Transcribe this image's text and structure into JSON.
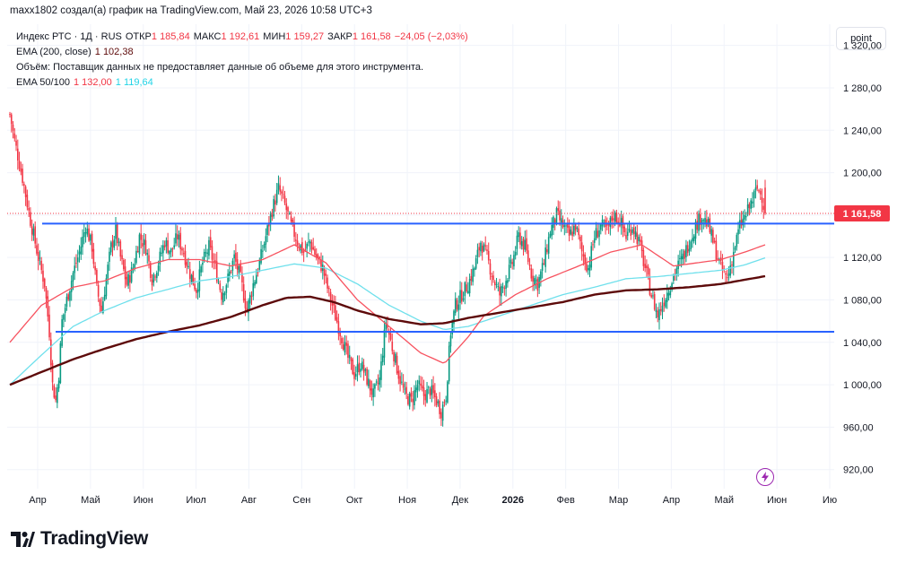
{
  "header": {
    "attribution": "maxx1802 создал(а) график на TradingView.com, Май 23, 2026 10:58 UTC+3"
  },
  "legend": {
    "symbol_line": "Индекс РТС · 1Д · RUS",
    "open_label": "ОТКР",
    "open_value": "1 185,84",
    "high_label": "МАКС",
    "high_value": "1 192,61",
    "low_label": "МИН",
    "low_value": "1 159,27",
    "close_label": "ЗАКР",
    "close_value": "1 161,58",
    "change": "−24,05 (−2,03%)",
    "ema200_label": "EMA (200, close)",
    "ema200_value": "1 102,38",
    "volume_note": "Объём: Поставщик данных не предоставляет данные об объеме для этого инструмента.",
    "ema_pair_label": "EMA 50/100",
    "ema50_value": "1 132,00",
    "ema100_value": "1 119,64"
  },
  "scale_button": "point",
  "price_badge": "1 161,58",
  "logo": {
    "text": "TradingView"
  },
  "colors": {
    "up": "#089981",
    "down": "#f23645",
    "ema50": "#f7525f",
    "ema100": "#6fe0ec",
    "ema200": "#5d0a0a",
    "level_line": "#2962ff",
    "badge_bg": "#f23645",
    "grid": "#f0f3fa"
  },
  "chart_data": {
    "type": "candlestick",
    "y_axis": {
      "ticks": [
        920,
        960,
        1000,
        1040,
        1080,
        1120,
        1160,
        1200,
        1240,
        1280,
        1320
      ],
      "tick_labels": [
        "920,00",
        "960,00",
        "1 000,00",
        "1 040,00",
        "1 080,00",
        "1 120,00",
        "1 160,00",
        "1 200,00",
        "1 240,00",
        "1 280,00",
        "1 320,00"
      ],
      "range": [
        902,
        1340
      ]
    },
    "x_axis": {
      "labels": [
        "Апр",
        "Май",
        "Июн",
        "Июл",
        "Авг",
        "Сен",
        "Окт",
        "Ноя",
        "Дек",
        "2026",
        "Фев",
        "Мар",
        "Апр",
        "Май",
        "Июн",
        "Ию"
      ],
      "bold_label_index": 9
    },
    "last_price": 1161.58,
    "last_price_line": true,
    "horizontal_levels": [
      1152,
      1050
    ],
    "price_path": [
      [
        0,
        1255
      ],
      [
        3,
        1230
      ],
      [
        8,
        1195
      ],
      [
        13,
        1155
      ],
      [
        18,
        1120
      ],
      [
        22,
        1095
      ],
      [
        25,
        1050
      ],
      [
        27,
        1000
      ],
      [
        29,
        985
      ],
      [
        31,
        1010
      ],
      [
        33,
        1060
      ],
      [
        36,
        1080
      ],
      [
        40,
        1105
      ],
      [
        44,
        1125
      ],
      [
        48,
        1150
      ],
      [
        52,
        1130
      ],
      [
        55,
        1090
      ],
      [
        58,
        1070
      ],
      [
        61,
        1100
      ],
      [
        64,
        1130
      ],
      [
        67,
        1145
      ],
      [
        70,
        1120
      ],
      [
        74,
        1095
      ],
      [
        78,
        1110
      ],
      [
        82,
        1140
      ],
      [
        86,
        1130
      ],
      [
        90,
        1100
      ],
      [
        94,
        1115
      ],
      [
        98,
        1135
      ],
      [
        102,
        1125
      ],
      [
        106,
        1140
      ],
      [
        110,
        1125
      ],
      [
        114,
        1105
      ],
      [
        118,
        1090
      ],
      [
        122,
        1115
      ],
      [
        126,
        1130
      ],
      [
        130,
        1110
      ],
      [
        134,
        1085
      ],
      [
        138,
        1100
      ],
      [
        142,
        1120
      ],
      [
        146,
        1100
      ],
      [
        150,
        1070
      ],
      [
        154,
        1095
      ],
      [
        158,
        1115
      ],
      [
        162,
        1140
      ],
      [
        166,
        1165
      ],
      [
        170,
        1185
      ],
      [
        174,
        1170
      ],
      [
        178,
        1150
      ],
      [
        182,
        1135
      ],
      [
        186,
        1125
      ],
      [
        190,
        1135
      ],
      [
        194,
        1120
      ],
      [
        198,
        1110
      ],
      [
        202,
        1085
      ],
      [
        206,
        1065
      ],
      [
        210,
        1045
      ],
      [
        214,
        1025
      ],
      [
        218,
        1010
      ],
      [
        222,
        1020
      ],
      [
        226,
        1005
      ],
      [
        230,
        990
      ],
      [
        234,
        1005
      ],
      [
        238,
        1060
      ],
      [
        242,
        1035
      ],
      [
        246,
        1010
      ],
      [
        250,
        990
      ],
      [
        254,
        985
      ],
      [
        258,
        1000
      ],
      [
        262,
        990
      ],
      [
        266,
        995
      ],
      [
        270,
        985
      ],
      [
        273,
        975
      ],
      [
        276,
        990
      ],
      [
        279,
        1050
      ],
      [
        282,
        1075
      ],
      [
        286,
        1085
      ],
      [
        290,
        1095
      ],
      [
        294,
        1110
      ],
      [
        298,
        1135
      ],
      [
        302,
        1120
      ],
      [
        306,
        1100
      ],
      [
        310,
        1085
      ],
      [
        314,
        1100
      ],
      [
        318,
        1115
      ],
      [
        322,
        1140
      ],
      [
        326,
        1130
      ],
      [
        330,
        1105
      ],
      [
        334,
        1095
      ],
      [
        338,
        1115
      ],
      [
        342,
        1145
      ],
      [
        346,
        1160
      ],
      [
        350,
        1150
      ],
      [
        354,
        1140
      ],
      [
        358,
        1150
      ],
      [
        362,
        1125
      ],
      [
        366,
        1110
      ],
      [
        370,
        1140
      ],
      [
        374,
        1150
      ],
      [
        378,
        1145
      ],
      [
        382,
        1160
      ],
      [
        386,
        1155
      ],
      [
        390,
        1140
      ],
      [
        394,
        1150
      ],
      [
        398,
        1135
      ],
      [
        402,
        1110
      ],
      [
        406,
        1085
      ],
      [
        410,
        1065
      ],
      [
        414,
        1080
      ],
      [
        418,
        1095
      ],
      [
        422,
        1110
      ],
      [
        426,
        1120
      ],
      [
        430,
        1135
      ],
      [
        434,
        1150
      ],
      [
        438,
        1160
      ],
      [
        442,
        1150
      ],
      [
        446,
        1130
      ],
      [
        450,
        1110
      ],
      [
        454,
        1100
      ],
      [
        458,
        1125
      ],
      [
        462,
        1150
      ],
      [
        466,
        1160
      ],
      [
        470,
        1175
      ],
      [
        473,
        1185
      ],
      [
        476,
        1178
      ],
      [
        478,
        1161.58
      ]
    ],
    "ema50": [
      [
        0,
        1040
      ],
      [
        20,
        1075
      ],
      [
        40,
        1092
      ],
      [
        60,
        1098
      ],
      [
        80,
        1110
      ],
      [
        100,
        1118
      ],
      [
        120,
        1118
      ],
      [
        140,
        1112
      ],
      [
        160,
        1118
      ],
      [
        180,
        1132
      ],
      [
        200,
        1115
      ],
      [
        220,
        1080
      ],
      [
        240,
        1055
      ],
      [
        260,
        1030
      ],
      [
        275,
        1020
      ],
      [
        290,
        1045
      ],
      [
        300,
        1065
      ],
      [
        320,
        1085
      ],
      [
        340,
        1100
      ],
      [
        360,
        1112
      ],
      [
        380,
        1125
      ],
      [
        400,
        1132
      ],
      [
        410,
        1122
      ],
      [
        420,
        1112
      ],
      [
        435,
        1115
      ],
      [
        450,
        1118
      ],
      [
        465,
        1125
      ],
      [
        478,
        1132
      ]
    ],
    "ema100": [
      [
        0,
        1000
      ],
      [
        20,
        1028
      ],
      [
        40,
        1055
      ],
      [
        60,
        1070
      ],
      [
        80,
        1082
      ],
      [
        100,
        1090
      ],
      [
        120,
        1098
      ],
      [
        140,
        1102
      ],
      [
        160,
        1108
      ],
      [
        180,
        1114
      ],
      [
        200,
        1110
      ],
      [
        220,
        1095
      ],
      [
        240,
        1075
      ],
      [
        260,
        1060
      ],
      [
        275,
        1052
      ],
      [
        290,
        1055
      ],
      [
        310,
        1065
      ],
      [
        330,
        1075
      ],
      [
        350,
        1085
      ],
      [
        370,
        1092
      ],
      [
        390,
        1100
      ],
      [
        410,
        1102
      ],
      [
        430,
        1105
      ],
      [
        450,
        1108
      ],
      [
        465,
        1113
      ],
      [
        478,
        1119.64
      ]
    ],
    "ema200": [
      [
        0,
        1000
      ],
      [
        20,
        1012
      ],
      [
        40,
        1024
      ],
      [
        60,
        1034
      ],
      [
        80,
        1043
      ],
      [
        100,
        1050
      ],
      [
        120,
        1056
      ],
      [
        140,
        1064
      ],
      [
        160,
        1075
      ],
      [
        175,
        1082
      ],
      [
        190,
        1083
      ],
      [
        205,
        1078
      ],
      [
        220,
        1070
      ],
      [
        240,
        1062
      ],
      [
        260,
        1057
      ],
      [
        275,
        1058
      ],
      [
        290,
        1063
      ],
      [
        310,
        1068
      ],
      [
        330,
        1073
      ],
      [
        350,
        1078
      ],
      [
        370,
        1085
      ],
      [
        390,
        1089
      ],
      [
        410,
        1090
      ],
      [
        430,
        1092
      ],
      [
        450,
        1095
      ],
      [
        465,
        1099
      ],
      [
        478,
        1102.38
      ]
    ]
  }
}
